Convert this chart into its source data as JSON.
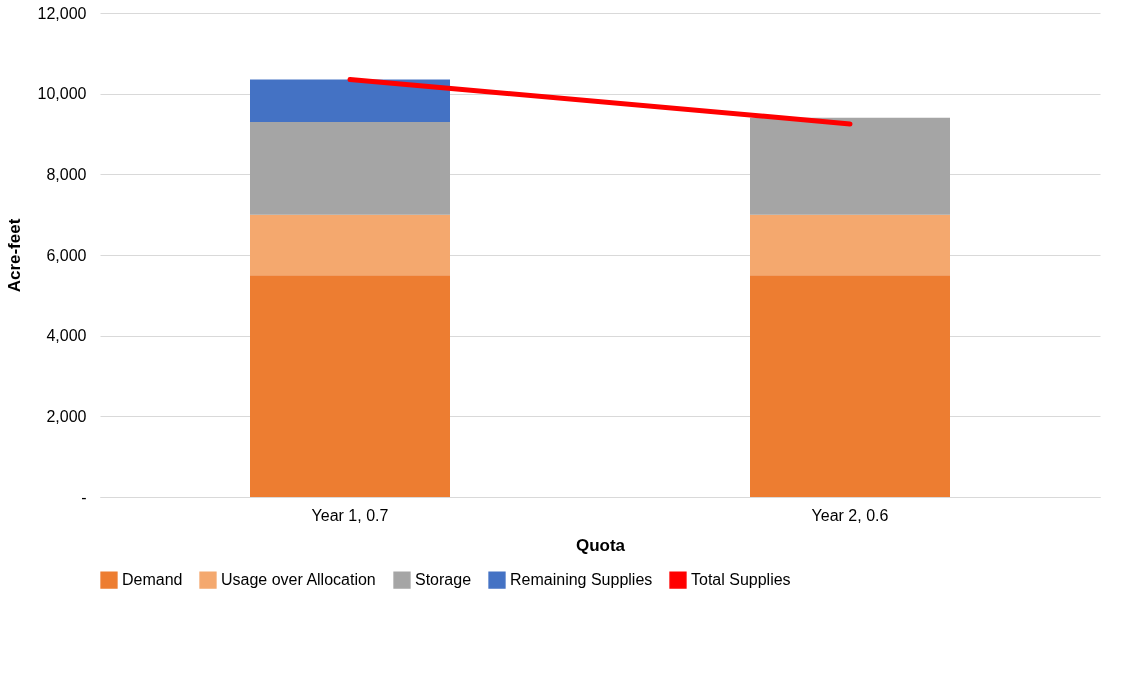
{
  "chart_data": {
    "type": "bar",
    "stacked": true,
    "xlabel": "Quota",
    "ylabel": "Acre-feet",
    "categories": [
      "Year 1, 0.7",
      "Year 2, 0.6"
    ],
    "series": [
      {
        "name": "Demand",
        "color": "#ed7d31",
        "values": [
          5500,
          5500
        ]
      },
      {
        "name": "Usage over Allocation",
        "color": "#f4a86e",
        "values": [
          1500,
          1500
        ]
      },
      {
        "name": "Storage",
        "color": "#a5a5a5",
        "values": [
          2300,
          2400
        ]
      },
      {
        "name": "Remaining Supplies",
        "color": "#4472c4",
        "values": [
          1050,
          null
        ]
      },
      {
        "name": "Total Supplies",
        "type": "line",
        "color": "#ff0000",
        "values": [
          10350,
          9250
        ]
      }
    ],
    "ylim": [
      0,
      12000
    ],
    "yticks": [
      {
        "value": 0,
        "label": "-"
      },
      {
        "value": 2000,
        "label": "2,000"
      },
      {
        "value": 4000,
        "label": "4,000"
      },
      {
        "value": 6000,
        "label": "6,000"
      },
      {
        "value": 8000,
        "label": "8,000"
      },
      {
        "value": 10000,
        "label": "10,000"
      },
      {
        "value": 12000,
        "label": "12,000"
      }
    ],
    "grid": "y",
    "legend": "bottom"
  }
}
